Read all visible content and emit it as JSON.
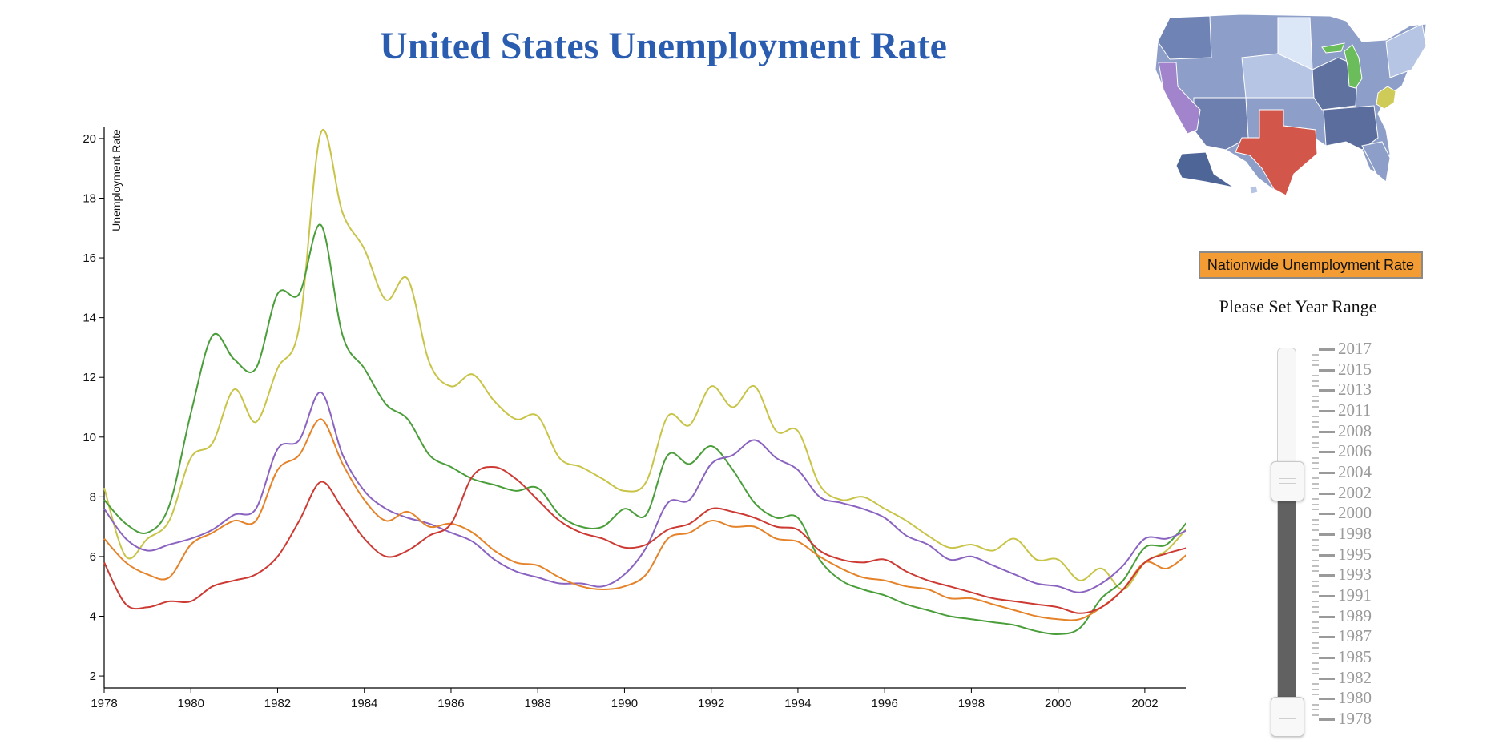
{
  "title": "United States Unemployment Rate",
  "nationwide_button": "Nationwide Unemployment Rate",
  "range_label": "Please Set Year Range",
  "slider_years": [
    "2017",
    "2015",
    "2013",
    "2011",
    "2008",
    "2006",
    "2004",
    "2002",
    "2000",
    "1998",
    "1995",
    "1993",
    "1991",
    "1989",
    "1987",
    "1985",
    "1982",
    "1980",
    "1978"
  ],
  "map_highlights": {
    "California": "#a184cc",
    "Texas": "#d2564a",
    "Michigan": "#6bbd5b",
    "West Virginia": "#cfcb59"
  },
  "chart_data": {
    "type": "line",
    "title": "United States Unemployment Rate",
    "xlabel": "",
    "ylabel": "Unemployment Rate",
    "xlim": [
      1978,
      2003
    ],
    "ylim": [
      1.6,
      20.4
    ],
    "xticks": [
      1978,
      1980,
      1982,
      1984,
      1986,
      1988,
      1990,
      1992,
      1994,
      1996,
      1998,
      2000,
      2002
    ],
    "yticks": [
      2,
      4,
      6,
      8,
      10,
      12,
      14,
      16,
      18,
      20
    ],
    "x": [
      1978,
      1978.5,
      1979,
      1979.5,
      1980,
      1980.5,
      1981,
      1981.5,
      1982,
      1982.5,
      1983,
      1983.5,
      1984,
      1984.5,
      1985,
      1985.5,
      1986,
      1986.5,
      1987,
      1987.5,
      1988,
      1988.5,
      1989,
      1989.5,
      1990,
      1990.5,
      1991,
      1991.5,
      1992,
      1992.5,
      1993,
      1993.5,
      1994,
      1994.5,
      1995,
      1995.5,
      1996,
      1996.5,
      1997,
      1997.5,
      1998,
      1998.5,
      1999,
      1999.5,
      2000,
      2000.5,
      2001,
      2001.5,
      2002,
      2002.5,
      2003
    ],
    "series": [
      {
        "name": "West Virginia",
        "color": "#c8c447",
        "values": [
          8.3,
          6.0,
          6.6,
          7.2,
          9.3,
          9.8,
          11.6,
          10.5,
          12.3,
          13.7,
          20.2,
          17.5,
          16.3,
          14.6,
          15.3,
          12.5,
          11.7,
          12.1,
          11.2,
          10.6,
          10.7,
          9.3,
          9.0,
          8.6,
          8.2,
          8.5,
          10.7,
          10.4,
          11.7,
          11.0,
          11.7,
          10.2,
          10.2,
          8.4,
          7.9,
          8.0,
          7.6,
          7.2,
          6.7,
          6.3,
          6.4,
          6.2,
          6.6,
          5.9,
          5.9,
          5.2,
          5.6,
          4.9,
          5.8,
          6.2,
          7.0
        ]
      },
      {
        "name": "Michigan",
        "color": "#4a9e3a",
        "values": [
          7.9,
          7.1,
          6.8,
          7.7,
          10.8,
          13.4,
          12.6,
          12.3,
          14.8,
          14.8,
          17.1,
          13.4,
          12.3,
          11.1,
          10.6,
          9.4,
          9.0,
          8.6,
          8.4,
          8.2,
          8.3,
          7.4,
          7.0,
          7.0,
          7.6,
          7.4,
          9.4,
          9.1,
          9.7,
          8.9,
          7.8,
          7.3,
          7.3,
          5.9,
          5.2,
          4.9,
          4.7,
          4.4,
          4.2,
          4.0,
          3.9,
          3.8,
          3.7,
          3.5,
          3.4,
          3.6,
          4.6,
          5.2,
          6.3,
          6.4,
          7.2
        ]
      },
      {
        "name": "California",
        "color": "#8a63c0",
        "values": [
          7.6,
          6.6,
          6.2,
          6.4,
          6.6,
          6.9,
          7.4,
          7.6,
          9.6,
          9.9,
          11.5,
          9.4,
          8.2,
          7.6,
          7.3,
          7.1,
          6.8,
          6.5,
          5.9,
          5.5,
          5.3,
          5.1,
          5.1,
          5.0,
          5.4,
          6.3,
          7.8,
          7.9,
          9.1,
          9.4,
          9.9,
          9.3,
          8.9,
          8.0,
          7.8,
          7.6,
          7.3,
          6.7,
          6.4,
          5.9,
          6.0,
          5.7,
          5.4,
          5.1,
          5.0,
          4.8,
          5.1,
          5.7,
          6.6,
          6.6,
          6.9
        ]
      },
      {
        "name": "Texas",
        "color": "#e5832a",
        "values": [
          6.6,
          5.8,
          5.4,
          5.3,
          6.4,
          6.8,
          7.2,
          7.2,
          8.9,
          9.4,
          10.6,
          9.1,
          7.9,
          7.2,
          7.5,
          7.0,
          7.1,
          6.8,
          6.2,
          5.8,
          5.7,
          5.3,
          5.0,
          4.9,
          5.0,
          5.4,
          6.6,
          6.8,
          7.2,
          7.0,
          7.0,
          6.6,
          6.5,
          6.0,
          5.6,
          5.3,
          5.2,
          5.0,
          4.9,
          4.6,
          4.6,
          4.4,
          4.2,
          4.0,
          3.9,
          3.9,
          4.3,
          4.9,
          5.8,
          5.6,
          6.1
        ]
      },
      {
        "name": "Nationwide",
        "color": "#cc3a33",
        "values": [
          5.8,
          4.4,
          4.3,
          4.5,
          4.5,
          5.0,
          5.2,
          5.4,
          6.0,
          7.2,
          8.5,
          7.6,
          6.6,
          6.0,
          6.2,
          6.7,
          7.1,
          8.7,
          9.0,
          8.6,
          7.9,
          7.2,
          6.8,
          6.6,
          6.3,
          6.4,
          6.9,
          7.1,
          7.6,
          7.5,
          7.3,
          7.0,
          6.9,
          6.2,
          5.9,
          5.8,
          5.9,
          5.5,
          5.2,
          5.0,
          4.8,
          4.6,
          4.5,
          4.4,
          4.3,
          4.1,
          4.3,
          4.9,
          5.8,
          6.1,
          6.3
        ]
      }
    ]
  }
}
